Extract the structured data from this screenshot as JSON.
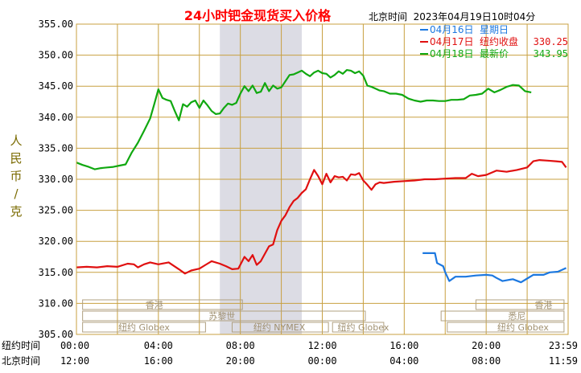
{
  "chart_data": {
    "type": "line",
    "title": "24小时钯金现货买入价格",
    "subtitle": "北京时间  2023年04月19日10时04分",
    "ylabel": "人民币/克",
    "ylim": [
      305,
      355
    ],
    "yticks": [
      "355.00",
      "350.00",
      "345.00",
      "340.00",
      "335.00",
      "330.00",
      "325.00",
      "320.00",
      "315.00",
      "310.00",
      "305.00"
    ],
    "ytick_values": [
      355,
      350,
      345,
      340,
      335,
      330,
      325,
      320,
      315,
      310,
      305
    ],
    "x_hours": [
      0,
      24
    ],
    "xtick_hours": [
      0,
      4,
      8,
      12,
      16,
      20,
      24
    ],
    "xrows": [
      {
        "label": "纽约时间",
        "ticks": [
          "00:00",
          "04:00",
          "08:00",
          "12:00",
          "16:00",
          "20:00",
          "23:59"
        ]
      },
      {
        "label": "北京时间",
        "ticks": [
          "12:00",
          "16:00",
          "20:00",
          "00:00",
          "04:00",
          "08:00",
          "11:59"
        ]
      }
    ],
    "grid": true,
    "shaded_hours": [
      7.0,
      11.0
    ],
    "legend_position": "top-right",
    "sessions": [
      {
        "label": "香港",
        "row": 0,
        "bar_hours": [
          0.3,
          8.1
        ],
        "label_hour": 3.8,
        "right_bar_hours": [
          19.5,
          23.8
        ],
        "right_label": "香港",
        "right_label_hour": 22.8
      },
      {
        "label": "苏黎世",
        "row": 1,
        "bar_hours": [
          0.3,
          14.1
        ],
        "label_hour": 7.1,
        "right_bar_hours": [
          17.8,
          23.8
        ],
        "right_label": "悉尼",
        "right_label_hour": 21.5
      },
      {
        "label": "纽约 Globex",
        "row": 2,
        "bar_hours": [
          0.3,
          6.3
        ],
        "label_hour": 3.3,
        "right_bar_hours": [
          18.1,
          23.8
        ],
        "right_label": "纽约 Globex",
        "right_label_hour": 21.8
      },
      {
        "label": "纽约 NYMEX",
        "row": 2,
        "bar_hours": [
          7.6,
          12.3
        ],
        "label_hour": 9.9
      },
      {
        "label": "纽约 Globex",
        "row": 2,
        "bar_hours": [
          12.5,
          15.0
        ],
        "label_hour": 14.0
      }
    ],
    "series": [
      {
        "name": "04月16日 星期日",
        "legend_date": "04月16日",
        "legend_text": "星期日",
        "legend_value": "",
        "color": "#1c78e0",
        "points": [
          [
            16.9,
            318.1
          ],
          [
            17.5,
            318.1
          ],
          [
            17.6,
            316.5
          ],
          [
            17.9,
            316.0
          ],
          [
            18.0,
            315.0
          ],
          [
            18.2,
            313.6
          ],
          [
            18.5,
            314.3
          ],
          [
            19.0,
            314.3
          ],
          [
            19.5,
            314.5
          ],
          [
            20.0,
            314.6
          ],
          [
            20.3,
            314.5
          ],
          [
            20.5,
            314.1
          ],
          [
            20.8,
            313.6
          ],
          [
            21.3,
            313.9
          ],
          [
            21.7,
            313.4
          ],
          [
            22.0,
            314.0
          ],
          [
            22.3,
            314.6
          ],
          [
            22.8,
            314.6
          ],
          [
            23.1,
            315.0
          ],
          [
            23.5,
            315.1
          ],
          [
            23.9,
            315.7
          ]
        ]
      },
      {
        "name": "04月17日 纽约收盘 330.25",
        "legend_date": "04月17日",
        "legend_text": "纽约收盘",
        "legend_value": "330.25",
        "color": "#e01010",
        "points": [
          [
            0,
            315.8
          ],
          [
            0.5,
            315.9
          ],
          [
            1.0,
            315.8
          ],
          [
            1.5,
            316.0
          ],
          [
            2.0,
            315.9
          ],
          [
            2.5,
            316.4
          ],
          [
            2.8,
            316.3
          ],
          [
            3.0,
            315.8
          ],
          [
            3.3,
            316.3
          ],
          [
            3.6,
            316.6
          ],
          [
            4.0,
            316.3
          ],
          [
            4.5,
            316.6
          ],
          [
            5.0,
            315.5
          ],
          [
            5.3,
            314.8
          ],
          [
            5.6,
            315.3
          ],
          [
            6.0,
            315.6
          ],
          [
            6.3,
            316.2
          ],
          [
            6.6,
            316.8
          ],
          [
            7.0,
            316.4
          ],
          [
            7.3,
            316.0
          ],
          [
            7.6,
            315.5
          ],
          [
            7.9,
            315.6
          ],
          [
            8.2,
            317.5
          ],
          [
            8.4,
            316.8
          ],
          [
            8.6,
            317.8
          ],
          [
            8.8,
            316.2
          ],
          [
            9.0,
            316.8
          ],
          [
            9.2,
            318.0
          ],
          [
            9.4,
            319.2
          ],
          [
            9.6,
            319.5
          ],
          [
            9.8,
            321.8
          ],
          [
            10.0,
            323.3
          ],
          [
            10.2,
            324.2
          ],
          [
            10.4,
            325.5
          ],
          [
            10.6,
            326.5
          ],
          [
            10.8,
            327.0
          ],
          [
            11.0,
            327.8
          ],
          [
            11.2,
            328.4
          ],
          [
            11.4,
            330.0
          ],
          [
            11.6,
            331.5
          ],
          [
            11.8,
            330.5
          ],
          [
            12.0,
            329.2
          ],
          [
            12.2,
            330.9
          ],
          [
            12.4,
            329.5
          ],
          [
            12.6,
            330.5
          ],
          [
            12.8,
            330.3
          ],
          [
            13.0,
            330.4
          ],
          [
            13.2,
            329.8
          ],
          [
            13.4,
            330.8
          ],
          [
            13.6,
            330.7
          ],
          [
            13.8,
            331.0
          ],
          [
            14.0,
            329.8
          ],
          [
            14.2,
            329.1
          ],
          [
            14.4,
            328.3
          ],
          [
            14.6,
            329.2
          ],
          [
            14.8,
            329.5
          ],
          [
            15.0,
            329.4
          ],
          [
            15.5,
            329.6
          ],
          [
            16.0,
            329.7
          ],
          [
            16.5,
            329.8
          ],
          [
            17.0,
            330.0
          ],
          [
            17.5,
            330.0
          ],
          [
            18.0,
            330.1
          ],
          [
            18.5,
            330.2
          ],
          [
            19.0,
            330.2
          ],
          [
            19.3,
            330.9
          ],
          [
            19.6,
            330.5
          ],
          [
            20.0,
            330.7
          ],
          [
            20.5,
            331.4
          ],
          [
            21.0,
            331.2
          ],
          [
            21.5,
            331.5
          ],
          [
            22.0,
            331.9
          ],
          [
            22.3,
            332.9
          ],
          [
            22.6,
            333.1
          ],
          [
            23.0,
            333.0
          ],
          [
            23.4,
            332.9
          ],
          [
            23.7,
            332.8
          ],
          [
            23.9,
            331.9
          ]
        ]
      },
      {
        "name": "04月18日 最新价 343.95",
        "legend_date": "04月18日",
        "legend_text": "最新价",
        "legend_value": "343.95",
        "color": "#10a810",
        "points": [
          [
            0,
            332.7
          ],
          [
            0.3,
            332.3
          ],
          [
            0.6,
            332.0
          ],
          [
            0.9,
            331.6
          ],
          [
            1.2,
            331.8
          ],
          [
            1.5,
            331.9
          ],
          [
            1.8,
            332.0
          ],
          [
            2.1,
            332.2
          ],
          [
            2.4,
            332.4
          ],
          [
            2.7,
            334.3
          ],
          [
            3.0,
            335.9
          ],
          [
            3.3,
            337.8
          ],
          [
            3.6,
            339.8
          ],
          [
            3.8,
            342.1
          ],
          [
            4.0,
            344.5
          ],
          [
            4.2,
            343.1
          ],
          [
            4.4,
            342.8
          ],
          [
            4.6,
            342.6
          ],
          [
            4.8,
            341.0
          ],
          [
            5.0,
            339.5
          ],
          [
            5.2,
            342.1
          ],
          [
            5.4,
            341.7
          ],
          [
            5.6,
            342.4
          ],
          [
            5.8,
            342.7
          ],
          [
            6.0,
            341.5
          ],
          [
            6.2,
            342.7
          ],
          [
            6.4,
            341.9
          ],
          [
            6.6,
            341.0
          ],
          [
            6.8,
            340.5
          ],
          [
            7.0,
            340.6
          ],
          [
            7.2,
            341.5
          ],
          [
            7.4,
            342.2
          ],
          [
            7.6,
            342.0
          ],
          [
            7.8,
            342.3
          ],
          [
            8.0,
            343.8
          ],
          [
            8.2,
            345.0
          ],
          [
            8.4,
            344.2
          ],
          [
            8.6,
            345.1
          ],
          [
            8.8,
            343.9
          ],
          [
            9.0,
            344.1
          ],
          [
            9.2,
            345.5
          ],
          [
            9.4,
            344.2
          ],
          [
            9.6,
            345.1
          ],
          [
            9.8,
            344.6
          ],
          [
            10.0,
            344.8
          ],
          [
            10.2,
            345.8
          ],
          [
            10.4,
            346.8
          ],
          [
            10.6,
            346.9
          ],
          [
            10.8,
            347.2
          ],
          [
            11.0,
            347.5
          ],
          [
            11.2,
            347.0
          ],
          [
            11.4,
            346.6
          ],
          [
            11.6,
            347.2
          ],
          [
            11.8,
            347.5
          ],
          [
            12.0,
            347.1
          ],
          [
            12.2,
            347.0
          ],
          [
            12.4,
            346.4
          ],
          [
            12.6,
            346.8
          ],
          [
            12.8,
            347.4
          ],
          [
            13.0,
            347.0
          ],
          [
            13.2,
            347.6
          ],
          [
            13.4,
            347.5
          ],
          [
            13.6,
            347.1
          ],
          [
            13.8,
            347.4
          ],
          [
            14.0,
            346.7
          ],
          [
            14.2,
            345.1
          ],
          [
            14.4,
            344.9
          ],
          [
            14.6,
            344.6
          ],
          [
            14.8,
            344.3
          ],
          [
            15.0,
            344.2
          ],
          [
            15.3,
            343.8
          ],
          [
            15.6,
            343.8
          ],
          [
            15.9,
            343.6
          ],
          [
            16.2,
            343.0
          ],
          [
            16.5,
            342.7
          ],
          [
            16.8,
            342.5
          ],
          [
            17.1,
            342.7
          ],
          [
            17.4,
            342.7
          ],
          [
            17.7,
            342.6
          ],
          [
            18.0,
            342.6
          ],
          [
            18.3,
            342.8
          ],
          [
            18.6,
            342.8
          ],
          [
            18.9,
            342.9
          ],
          [
            19.2,
            343.5
          ],
          [
            19.5,
            343.6
          ],
          [
            19.8,
            343.8
          ],
          [
            20.1,
            344.6
          ],
          [
            20.4,
            344.0
          ],
          [
            20.7,
            344.4
          ],
          [
            21.0,
            344.9
          ],
          [
            21.3,
            345.2
          ],
          [
            21.6,
            345.1
          ],
          [
            21.9,
            344.2
          ],
          [
            22.2,
            344.0
          ]
        ]
      }
    ]
  }
}
